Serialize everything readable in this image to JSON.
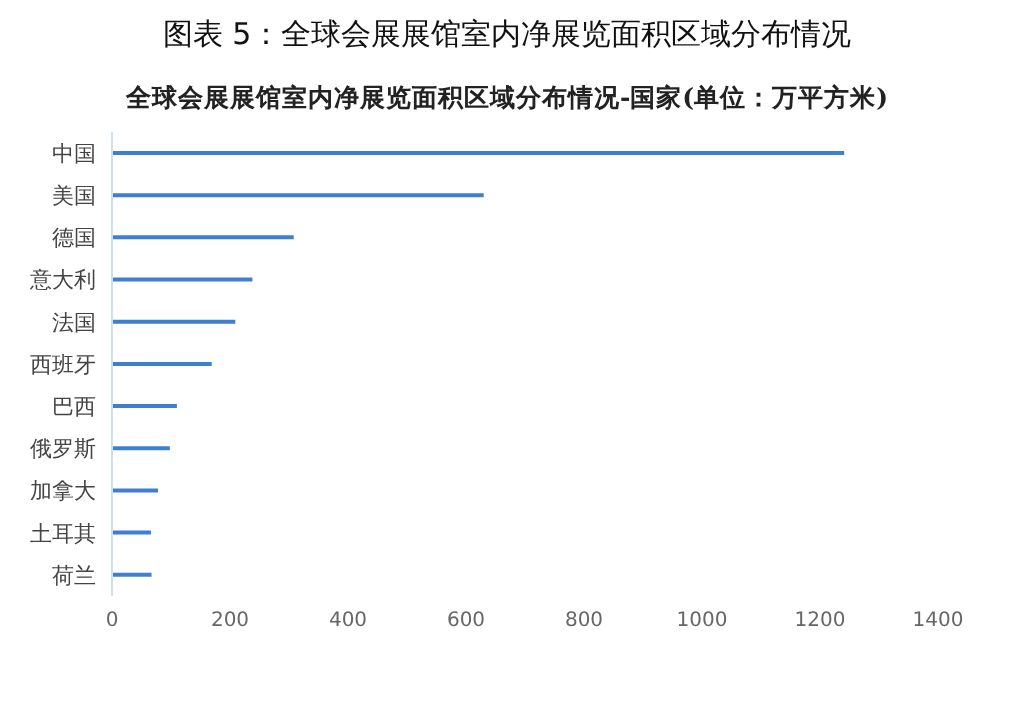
{
  "chart_data": {
    "type": "bar",
    "title": "图表 5：全球会展展馆室内净展览面积区域分布情况",
    "subtitle": "全球会展展馆室内净展览面积区域分布情况-国家(单位：万平方米)",
    "orientation": "horizontal",
    "categories": [
      "中国",
      "美国",
      "德国",
      "意大利",
      "法国",
      "西班牙",
      "巴西",
      "俄罗斯",
      "加拿大",
      "土耳其",
      "荷兰"
    ],
    "values": [
      1241,
      630,
      308,
      238,
      209,
      169,
      110,
      98,
      78,
      66,
      67
    ],
    "color": "#3f7fd3",
    "xlim": [
      0,
      1400
    ],
    "xticks": [
      0,
      200,
      400,
      600,
      800,
      1000,
      1200,
      1400
    ],
    "grid": false,
    "legend": false
  }
}
